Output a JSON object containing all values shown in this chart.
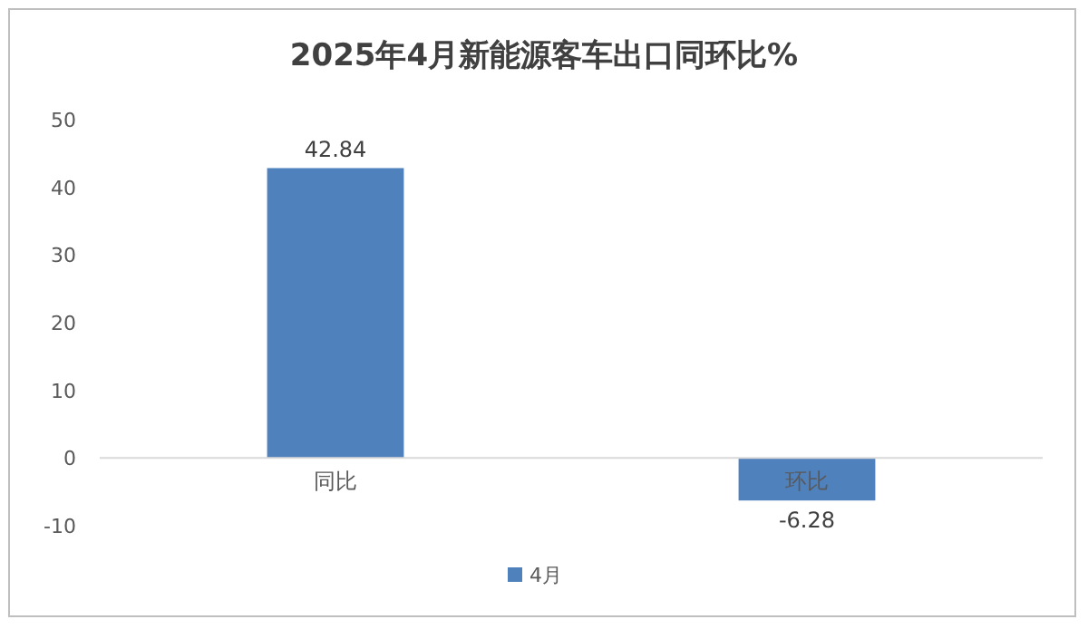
{
  "chart_data": {
    "type": "bar",
    "title": "2025年4月新能源客车出口同环比%",
    "categories": [
      "同比",
      "环比"
    ],
    "series": [
      {
        "name": "4月",
        "color": "#4f81bd",
        "values": [
          42.84,
          -6.28
        ]
      }
    ],
    "ylim": [
      -10,
      50
    ],
    "yticks": [
      -10,
      0,
      10,
      20,
      30,
      40,
      50
    ],
    "data_labels": true,
    "legend": "bottom"
  }
}
